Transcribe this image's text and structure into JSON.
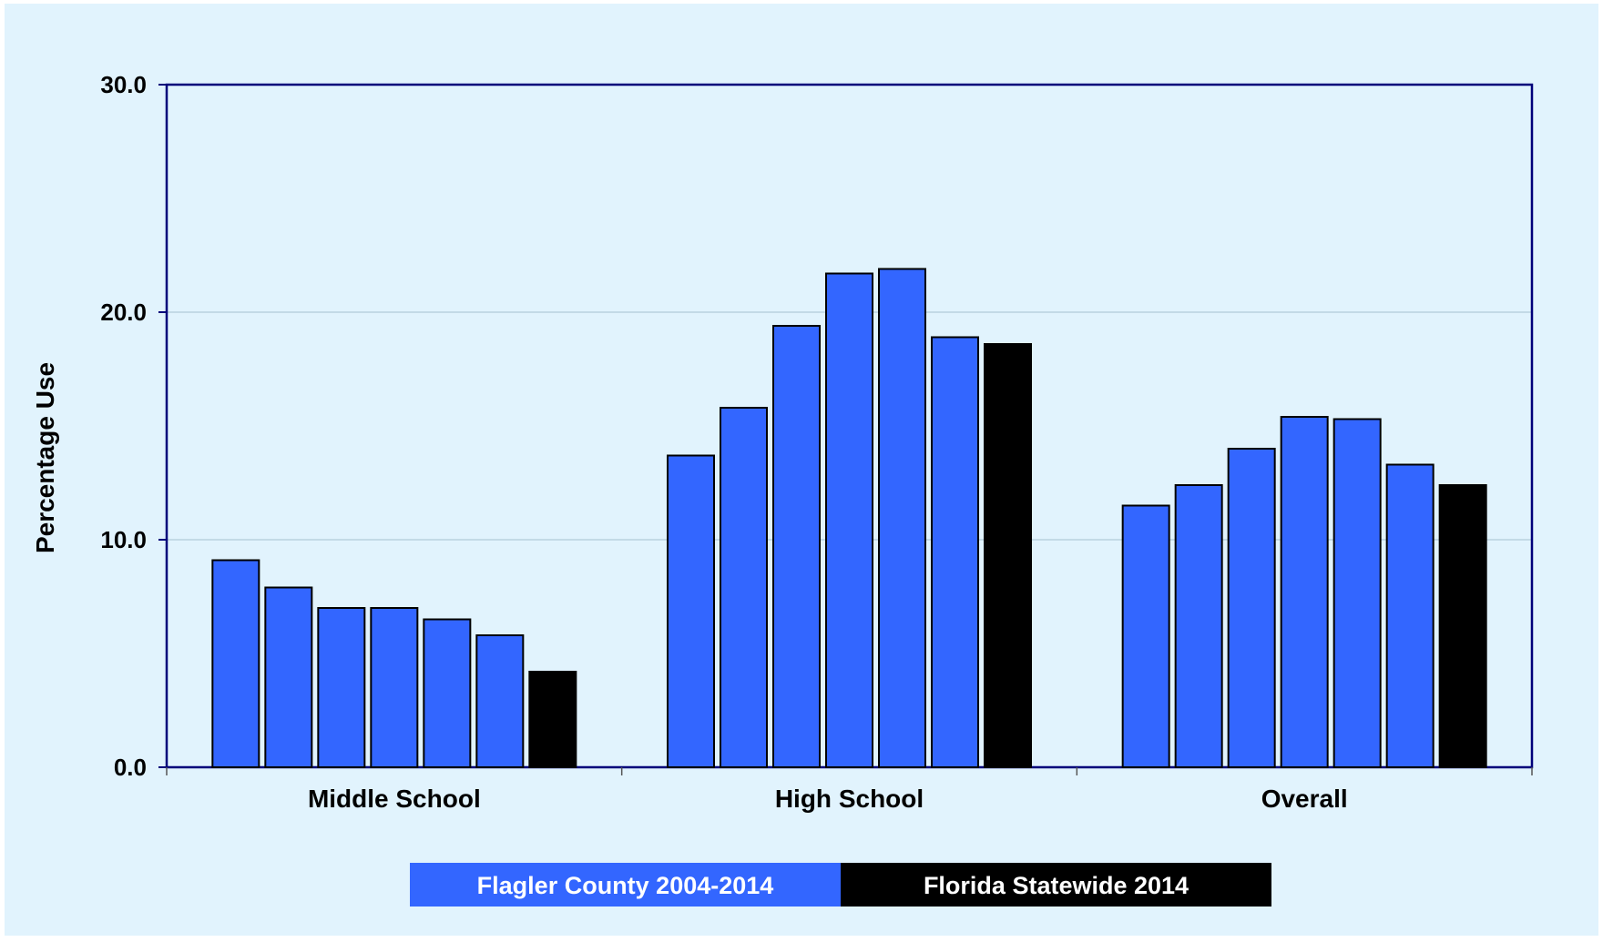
{
  "chart_data": {
    "type": "bar",
    "categories": [
      "Middle School",
      "High School",
      "Overall"
    ],
    "series": [
      {
        "values": [
          9.1,
          13.7,
          11.5
        ],
        "color": "#3366ff",
        "legend_group": 0
      },
      {
        "values": [
          7.9,
          15.8,
          12.4
        ],
        "color": "#3366ff",
        "legend_group": 0
      },
      {
        "values": [
          7.0,
          19.4,
          14.0
        ],
        "color": "#3366ff",
        "legend_group": 0
      },
      {
        "values": [
          7.0,
          21.7,
          15.4
        ],
        "color": "#3366ff",
        "legend_group": 0
      },
      {
        "values": [
          6.5,
          21.9,
          15.3
        ],
        "color": "#3366ff",
        "legend_group": 0
      },
      {
        "values": [
          5.8,
          18.9,
          13.3
        ],
        "color": "#3366ff",
        "legend_group": 0
      },
      {
        "values": [
          4.2,
          18.6,
          12.4
        ],
        "color": "#000000",
        "legend_group": 1
      }
    ],
    "legend": [
      {
        "label": "Flagler County 2004-2014",
        "color": "#3366ff"
      },
      {
        "label": "Florida Statewide 2014",
        "color": "#000000"
      }
    ],
    "legend_position": "bottom",
    "ylabel": "Percentage Use",
    "xlabel": "",
    "title": "",
    "ylim": [
      0,
      30
    ],
    "yticks": [
      "0.0",
      "10.0",
      "20.0",
      "30.0"
    ],
    "grid": true,
    "plot_background": "#e1f3fd",
    "axis_color": "#00007a"
  }
}
